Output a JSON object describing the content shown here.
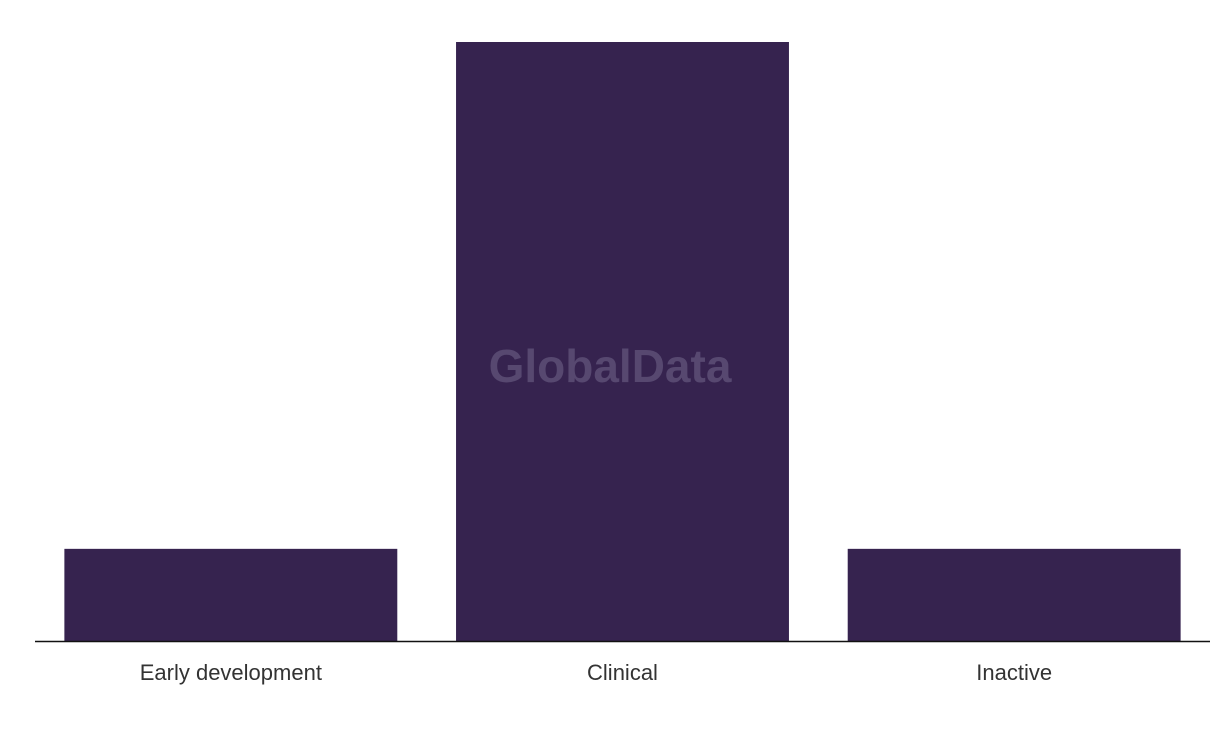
{
  "chart_data": {
    "type": "bar",
    "watermark": "GlobalData",
    "categories": [
      "Early development",
      "Clinical",
      "Inactive"
    ],
    "values": [
      2,
      13,
      2
    ],
    "color": "#36234f"
  }
}
